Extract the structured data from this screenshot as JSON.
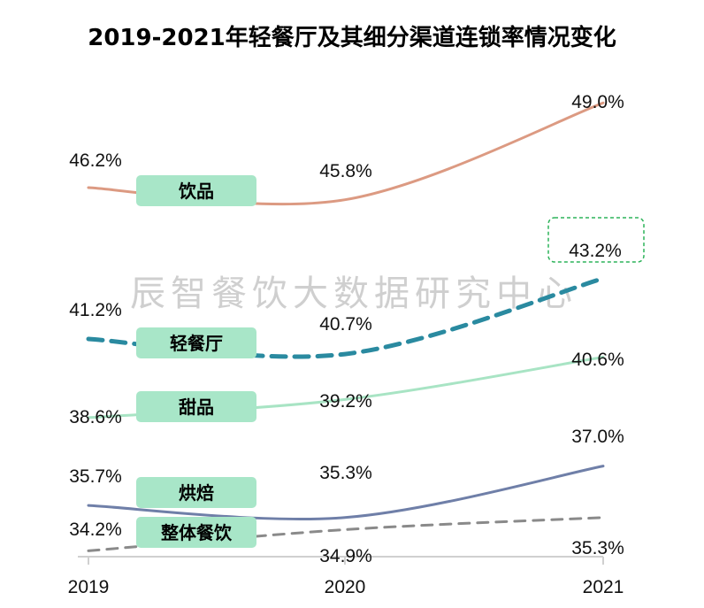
{
  "chart_data": {
    "type": "line",
    "title": "2019-2021年轻餐厅及其细分渠道连锁率情况变化",
    "watermark": "辰智餐饮大数据研究中心",
    "categories": [
      "2019",
      "2020",
      "2021"
    ],
    "ylim": [
      34,
      49.3
    ],
    "grid": false,
    "legend": "inline-labels",
    "series": [
      {
        "name": "饮品",
        "values": [
          46.2,
          45.8,
          49.0
        ],
        "labels": [
          "46.2%",
          "45.8%",
          "49.0%"
        ],
        "color": "#dc9a82",
        "dashed": false
      },
      {
        "name": "轻餐厅",
        "values": [
          41.2,
          40.7,
          43.2
        ],
        "labels": [
          "41.2%",
          "40.7%",
          "43.2%"
        ],
        "color": "#2a8aa0",
        "dashed": true,
        "highlight_last": true
      },
      {
        "name": "甜品",
        "values": [
          38.6,
          39.2,
          40.6
        ],
        "labels": [
          "38.6%",
          "39.2%",
          "40.6%"
        ],
        "color": "#a8e4c4",
        "dashed": false
      },
      {
        "name": "烘焙",
        "values": [
          35.7,
          35.3,
          37.0
        ],
        "labels": [
          "35.7%",
          "35.3%",
          "37.0%"
        ],
        "color": "#6f7fa8",
        "dashed": false
      },
      {
        "name": "整体餐饮",
        "values": [
          34.2,
          34.9,
          35.3
        ],
        "labels": [
          "34.2%",
          "34.9%",
          "35.3%"
        ],
        "color": "#8a8a8a",
        "dashed": true
      }
    ],
    "label_box_color": "#a8e6c8",
    "highlight_box_color": "#2db35a"
  }
}
